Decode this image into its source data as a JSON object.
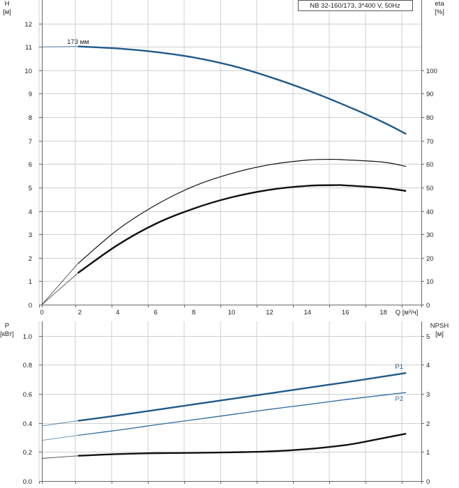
{
  "chart_data": [
    {
      "type": "line",
      "title": "NB 32-160/173, 3*400 V, 50Hz",
      "xlabel": "Q [м³/ч]",
      "ylabel": [
        "H",
        "[м]"
      ],
      "ylabel_right": [
        "eta",
        "[%]"
      ],
      "xlim": [
        0,
        20
      ],
      "ylim": [
        0,
        13
      ],
      "ylim_right": [
        0,
        130
      ],
      "xticks": [
        0,
        2,
        4,
        6,
        8,
        10,
        12,
        14,
        16,
        18
      ],
      "yticks": [
        0,
        1,
        2,
        3,
        4,
        5,
        6,
        7,
        8,
        9,
        10,
        11,
        12
      ],
      "yticks_right": [
        0,
        10,
        20,
        30,
        40,
        50,
        60,
        70,
        80,
        90,
        100
      ],
      "grid": true,
      "annotations": [
        {
          "text": "173 мм",
          "x": 1.1,
          "y": 11.0
        }
      ],
      "series": [
        {
          "role": "H",
          "color": "#1f5a8c",
          "axis": "left",
          "x": [
            0,
            1.9,
            4,
            6,
            8,
            10,
            12,
            14,
            16,
            18,
            19.2
          ],
          "y": [
            11.0,
            11.02,
            10.93,
            10.78,
            10.55,
            10.2,
            9.72,
            9.15,
            8.5,
            7.78,
            7.28
          ]
        },
        {
          "role": "eta_thin",
          "color": "#111111",
          "axis": "right",
          "x": [
            0,
            1.9,
            4,
            6,
            8,
            10,
            12,
            14,
            15.3,
            16,
            18,
            19.2
          ],
          "y": [
            0,
            17.5,
            32,
            42.5,
            50.5,
            56,
            59.7,
            61.7,
            62,
            61.8,
            60.8,
            59
          ]
        },
        {
          "role": "eta_thick",
          "color": "#111111",
          "axis": "right",
          "x": [
            0,
            1.9,
            4,
            6,
            8,
            10,
            12,
            14,
            15.5,
            16,
            18,
            19.2
          ],
          "y": [
            0,
            13.5,
            25.5,
            34.5,
            41,
            45.8,
            49,
            50.7,
            51,
            50.9,
            49.8,
            48.5
          ]
        }
      ]
    },
    {
      "type": "line",
      "title": "",
      "xlabel": "",
      "ylabel": [
        "P",
        "[кВт]"
      ],
      "ylabel_right": [
        "NPSH",
        "[м]"
      ],
      "xlim": [
        0,
        20
      ],
      "ylim": [
        0,
        1.1
      ],
      "ylim_right": [
        0,
        5.5
      ],
      "yticks": [
        "0.0",
        "0.2",
        "0.4",
        "0.6",
        "0.8",
        "1.0"
      ],
      "yticks_right": [
        0,
        1,
        2,
        3,
        4,
        5
      ],
      "grid": true,
      "series": [
        {
          "name": "P1",
          "color": "#1f5a8c",
          "axis": "left",
          "x": [
            0,
            1.9,
            4,
            6,
            8,
            10,
            12,
            14,
            16,
            18,
            19.2
          ],
          "y": [
            0.38,
            0.415,
            0.452,
            0.49,
            0.528,
            0.566,
            0.604,
            0.642,
            0.68,
            0.72,
            0.745
          ]
        },
        {
          "name": "P2",
          "color": "#2d6aa0",
          "axis": "left",
          "x": [
            0,
            1.9,
            4,
            6,
            8,
            10,
            12,
            14,
            16,
            18,
            19.2
          ],
          "y": [
            0.28,
            0.315,
            0.35,
            0.387,
            0.422,
            0.458,
            0.494,
            0.527,
            0.561,
            0.592,
            0.61
          ]
        },
        {
          "role": "NPSH",
          "color": "#111111",
          "axis": "right",
          "x": [
            0,
            1.9,
            4,
            6,
            8,
            10,
            12,
            14,
            16,
            17,
            18,
            19.2
          ],
          "y": [
            0.78,
            0.87,
            0.93,
            0.96,
            0.97,
            0.99,
            1.02,
            1.1,
            1.24,
            1.35,
            1.48,
            1.63
          ]
        }
      ]
    }
  ]
}
